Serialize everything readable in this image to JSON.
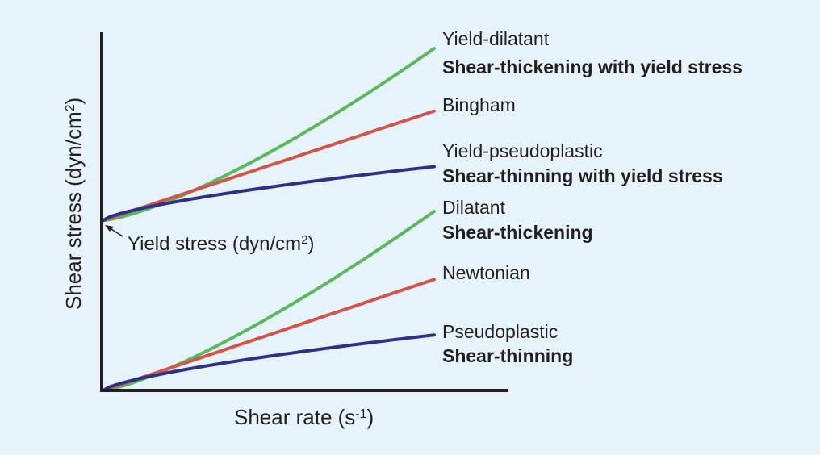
{
  "chart_data": {
    "type": "line",
    "xlabel": "Shear rate (s",
    "xlabel_sup": "-1",
    "xlabel_end": ")",
    "ylabel": "Shear stress (dyn/cm",
    "ylabel_sup": "2",
    "ylabel_end": ")",
    "annotation": {
      "text": "Yield stress (dyn/cm",
      "sup": "2",
      "end": ")"
    },
    "series": [
      {
        "key": "yield_dilatant",
        "name": "Yield-dilatant",
        "subtitle": "Shear-thickening with yield stress",
        "color": "#5cb85c",
        "start": 0.475,
        "end": 0.955,
        "exponent": 1.35
      },
      {
        "key": "bingham",
        "name": "Bingham",
        "subtitle": "",
        "color": "#d2544a",
        "start": 0.475,
        "end": 0.78,
        "exponent": 1.0
      },
      {
        "key": "yield_pseudoplastic",
        "name": "Yield-pseudoplastic",
        "subtitle": "Shear-thinning with yield stress",
        "color": "#2e3087",
        "start": 0.475,
        "end": 0.625,
        "exponent": 0.7
      },
      {
        "key": "dilatant",
        "name": "Dilatant",
        "subtitle": "Shear-thickening",
        "color": "#5cb85c",
        "start": 0.0,
        "end": 0.5,
        "exponent": 1.3
      },
      {
        "key": "newtonian",
        "name": "Newtonian",
        "subtitle": "",
        "color": "#d2544a",
        "start": 0.0,
        "end": 0.31,
        "exponent": 1.0
      },
      {
        "key": "pseudoplastic",
        "name": "Pseudoplastic",
        "subtitle": "Shear-thinning",
        "color": "#2e3087",
        "start": 0.0,
        "end": 0.155,
        "exponent": 0.7
      }
    ]
  }
}
